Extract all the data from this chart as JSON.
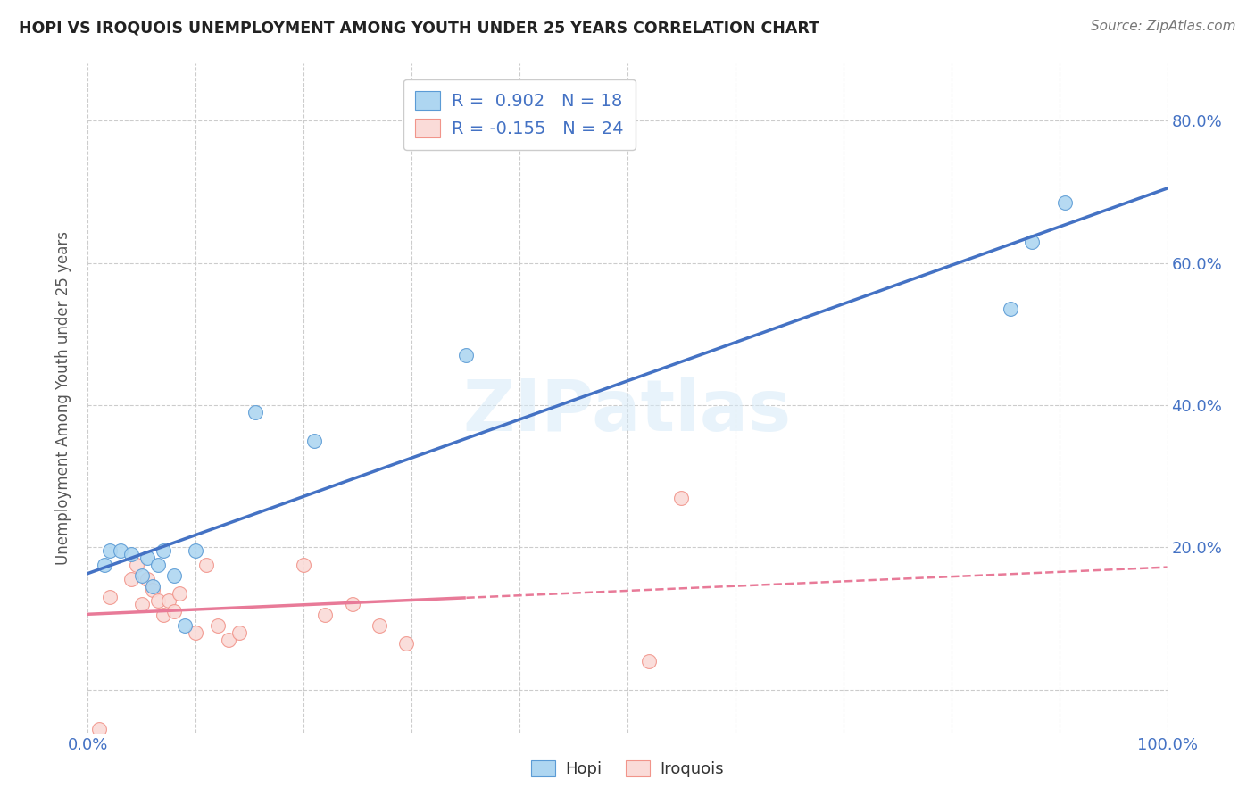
{
  "title": "HOPI VS IROQUOIS UNEMPLOYMENT AMONG YOUTH UNDER 25 YEARS CORRELATION CHART",
  "source": "Source: ZipAtlas.com",
  "ylabel": "Unemployment Among Youth under 25 years",
  "xlim": [
    0.0,
    1.0
  ],
  "ylim": [
    -0.06,
    0.88
  ],
  "x_ticks": [
    0.0,
    0.1,
    0.2,
    0.3,
    0.4,
    0.5,
    0.6,
    0.7,
    0.8,
    0.9,
    1.0
  ],
  "x_tick_labels": [
    "0.0%",
    "",
    "",
    "",
    "",
    "",
    "",
    "",
    "",
    "",
    "100.0%"
  ],
  "y_ticks": [
    0.0,
    0.2,
    0.4,
    0.6,
    0.8
  ],
  "y_tick_labels_left": [
    "",
    "",
    "",
    "",
    ""
  ],
  "y_tick_labels_right": [
    "",
    "20.0%",
    "40.0%",
    "60.0%",
    "80.0%"
  ],
  "hopi_fill_color": "#AED6F1",
  "iroquois_fill_color": "#FADBD8",
  "hopi_edge_color": "#5B9BD5",
  "iroquois_edge_color": "#F1948A",
  "hopi_line_color": "#4472C4",
  "iroquois_line_color": "#E87A98",
  "hopi_R": 0.902,
  "hopi_N": 18,
  "iroquois_R": -0.155,
  "iroquois_N": 24,
  "watermark_text": "ZIPatlas",
  "hopi_x": [
    0.015,
    0.02,
    0.03,
    0.04,
    0.05,
    0.055,
    0.06,
    0.065,
    0.07,
    0.08,
    0.09,
    0.1,
    0.155,
    0.21,
    0.35,
    0.855,
    0.875,
    0.905
  ],
  "hopi_y": [
    0.175,
    0.195,
    0.195,
    0.19,
    0.16,
    0.185,
    0.145,
    0.175,
    0.195,
    0.16,
    0.09,
    0.195,
    0.39,
    0.35,
    0.47,
    0.535,
    0.63,
    0.685
  ],
  "iroquois_x": [
    0.01,
    0.02,
    0.04,
    0.045,
    0.05,
    0.055,
    0.06,
    0.065,
    0.07,
    0.075,
    0.08,
    0.085,
    0.1,
    0.11,
    0.12,
    0.13,
    0.14,
    0.2,
    0.22,
    0.245,
    0.27,
    0.295,
    0.52,
    0.55
  ],
  "iroquois_y": [
    -0.055,
    0.13,
    0.155,
    0.175,
    0.12,
    0.155,
    0.14,
    0.125,
    0.105,
    0.125,
    0.11,
    0.135,
    0.08,
    0.175,
    0.09,
    0.07,
    0.08,
    0.175,
    0.105,
    0.12,
    0.09,
    0.065,
    0.04,
    0.27
  ],
  "background_color": "#FFFFFF",
  "grid_color": "#CCCCCC",
  "dot_size": 130,
  "legend_hopi_text": "R =  0.902   N = 18",
  "legend_iroquois_text": "R = -0.155   N = 24"
}
